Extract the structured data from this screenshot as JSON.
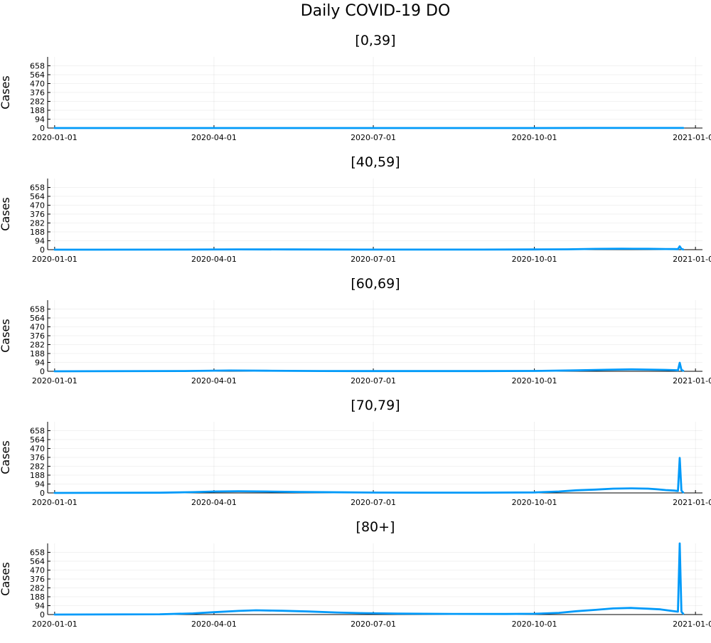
{
  "figure": {
    "title": "Daily COVID-19 DO"
  },
  "colors": {
    "series": "#009af9"
  },
  "chart_data": [
    {
      "type": "line",
      "title": "[0,39]",
      "ylabel": "Cases",
      "xlabel": "",
      "grid": true,
      "ylim": [
        0,
        752
      ],
      "yticks": [
        0,
        94,
        188,
        282,
        376,
        470,
        564,
        658
      ],
      "xlim": [
        "2019-12-28",
        "2021-01-05"
      ],
      "xticks": [
        "2020-01-01",
        "2020-04-01",
        "2020-07-01",
        "2020-10-01",
        "2021-01-01"
      ],
      "x": [
        "2020-01-01",
        "2020-03-01",
        "2020-04-01",
        "2020-05-01",
        "2020-06-01",
        "2020-07-01",
        "2020-08-01",
        "2020-09-01",
        "2020-10-01",
        "2020-11-01",
        "2020-12-01",
        "2020-12-20",
        "2020-12-25"
      ],
      "series": [
        {
          "values": [
            0,
            0,
            0,
            0,
            0,
            0,
            0,
            0,
            0,
            1,
            1,
            1,
            1
          ]
        }
      ]
    },
    {
      "type": "line",
      "title": "[40,59]",
      "ylabel": "Cases",
      "xlabel": "",
      "grid": true,
      "ylim": [
        0,
        752
      ],
      "yticks": [
        0,
        94,
        188,
        282,
        376,
        470,
        564,
        658
      ],
      "xlim": [
        "2019-12-28",
        "2021-01-05"
      ],
      "xticks": [
        "2020-01-01",
        "2020-04-01",
        "2020-07-01",
        "2020-10-01",
        "2021-01-01"
      ],
      "x": [
        "2020-01-01",
        "2020-03-15",
        "2020-04-15",
        "2020-05-15",
        "2020-07-01",
        "2020-09-01",
        "2020-10-01",
        "2020-10-20",
        "2020-11-05",
        "2020-11-20",
        "2020-12-05",
        "2020-12-15",
        "2020-12-20",
        "2020-12-22",
        "2020-12-23",
        "2020-12-24",
        "2020-12-25"
      ],
      "series": [
        {
          "values": [
            0,
            1,
            3,
            2,
            1,
            1,
            2,
            4,
            8,
            10,
            9,
            7,
            6,
            5,
            35,
            8,
            2
          ]
        }
      ]
    },
    {
      "type": "line",
      "title": "[60,69]",
      "ylabel": "Cases",
      "xlabel": "",
      "grid": true,
      "ylim": [
        0,
        752
      ],
      "yticks": [
        0,
        94,
        188,
        282,
        376,
        470,
        564,
        658
      ],
      "xlim": [
        "2019-12-28",
        "2021-01-05"
      ],
      "xticks": [
        "2020-01-01",
        "2020-04-01",
        "2020-07-01",
        "2020-10-01",
        "2021-01-01"
      ],
      "x": [
        "2020-01-01",
        "2020-03-15",
        "2020-04-10",
        "2020-05-01",
        "2020-06-01",
        "2020-07-01",
        "2020-09-01",
        "2020-10-01",
        "2020-10-25",
        "2020-11-10",
        "2020-11-25",
        "2020-12-05",
        "2020-12-15",
        "2020-12-20",
        "2020-12-22",
        "2020-12-23",
        "2020-12-24",
        "2020-12-25"
      ],
      "series": [
        {
          "values": [
            0,
            3,
            8,
            6,
            3,
            2,
            2,
            4,
            10,
            16,
            20,
            18,
            15,
            12,
            10,
            90,
            15,
            5
          ]
        }
      ]
    },
    {
      "type": "line",
      "title": "[70,79]",
      "ylabel": "Cases",
      "xlabel": "",
      "grid": true,
      "ylim": [
        0,
        752
      ],
      "yticks": [
        0,
        94,
        188,
        282,
        376,
        470,
        564,
        658
      ],
      "xlim": [
        "2019-12-28",
        "2021-01-05"
      ],
      "xticks": [
        "2020-01-01",
        "2020-04-01",
        "2020-07-01",
        "2020-10-01",
        "2021-01-01"
      ],
      "x": [
        "2020-01-01",
        "2020-03-01",
        "2020-03-20",
        "2020-04-01",
        "2020-04-15",
        "2020-05-01",
        "2020-05-20",
        "2020-06-15",
        "2020-07-01",
        "2020-08-01",
        "2020-09-01",
        "2020-10-01",
        "2020-10-15",
        "2020-10-25",
        "2020-11-05",
        "2020-11-15",
        "2020-11-25",
        "2020-12-05",
        "2020-12-10",
        "2020-12-15",
        "2020-12-20",
        "2020-12-22",
        "2020-12-23",
        "2020-12-24",
        "2020-12-25"
      ],
      "series": [
        {
          "values": [
            0,
            2,
            8,
            15,
            18,
            15,
            10,
            6,
            4,
            3,
            3,
            5,
            15,
            28,
            35,
            45,
            48,
            45,
            38,
            30,
            25,
            20,
            370,
            25,
            5
          ]
        }
      ]
    },
    {
      "type": "line",
      "title": "[80+]",
      "ylabel": "Cases",
      "xlabel": "",
      "grid": true,
      "ylim": [
        0,
        752
      ],
      "yticks": [
        0,
        94,
        188,
        282,
        376,
        470,
        564,
        658
      ],
      "xlim": [
        "2019-12-28",
        "2021-01-05"
      ],
      "xticks": [
        "2020-01-01",
        "2020-04-01",
        "2020-07-01",
        "2020-10-01",
        "2021-01-01"
      ],
      "x": [
        "2020-01-01",
        "2020-03-01",
        "2020-03-20",
        "2020-04-01",
        "2020-04-15",
        "2020-04-25",
        "2020-05-10",
        "2020-05-25",
        "2020-06-10",
        "2020-06-25",
        "2020-07-15",
        "2020-08-15",
        "2020-09-15",
        "2020-10-01",
        "2020-10-15",
        "2020-10-25",
        "2020-11-05",
        "2020-11-15",
        "2020-11-25",
        "2020-12-05",
        "2020-12-12",
        "2020-12-18",
        "2020-12-22",
        "2020-12-23",
        "2020-12-24",
        "2020-12-25"
      ],
      "series": [
        {
          "values": [
            0,
            3,
            12,
            25,
            38,
            45,
            40,
            32,
            22,
            15,
            10,
            7,
            6,
            8,
            18,
            35,
            50,
            65,
            70,
            62,
            55,
            40,
            30,
            752,
            30,
            8
          ]
        }
      ]
    }
  ]
}
